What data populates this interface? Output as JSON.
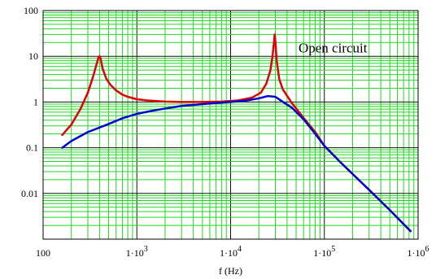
{
  "chart_data": {
    "type": "line",
    "title": "",
    "xlabel": "f (Hz)",
    "ylabel": "",
    "x_scale": "log",
    "y_scale": "log",
    "xlim": [
      100,
      1000000
    ],
    "ylim": [
      0.001,
      100
    ],
    "grid": true,
    "x_ticks": [
      {
        "value": 100,
        "label": "100",
        "exp": ""
      },
      {
        "value": 1000,
        "label": "1·10",
        "exp": "3"
      },
      {
        "value": 10000,
        "label": "1·10",
        "exp": "4"
      },
      {
        "value": 100000,
        "label": "1·10",
        "exp": "5"
      },
      {
        "value": 1000000,
        "label": "1·10",
        "exp": "6"
      }
    ],
    "y_ticks": [
      {
        "value": 100,
        "label": "100"
      },
      {
        "value": 10,
        "label": "10"
      },
      {
        "value": 1,
        "label": "1"
      },
      {
        "value": 0.1,
        "label": "0.1"
      },
      {
        "value": 0.01,
        "label": "0.01"
      }
    ],
    "annotations": [
      {
        "text": "Open circuit",
        "x": 53000,
        "y": 20
      }
    ],
    "series": [
      {
        "color": "#e00000",
        "points": [
          [
            160,
            0.19
          ],
          [
            200,
            0.32
          ],
          [
            250,
            0.7
          ],
          [
            300,
            1.6
          ],
          [
            340,
            3.5
          ],
          [
            370,
            6.5
          ],
          [
            390,
            9.5
          ],
          [
            400,
            10
          ],
          [
            410,
            9
          ],
          [
            430,
            5.5
          ],
          [
            470,
            3.3
          ],
          [
            520,
            2.4
          ],
          [
            600,
            1.8
          ],
          [
            700,
            1.45
          ],
          [
            800,
            1.3
          ],
          [
            1000,
            1.15
          ],
          [
            1300,
            1.08
          ],
          [
            2000,
            1.02
          ],
          [
            3000,
            1.0
          ],
          [
            5000,
            1.0
          ],
          [
            8000,
            1.02
          ],
          [
            12000,
            1.08
          ],
          [
            17000,
            1.25
          ],
          [
            21000,
            1.6
          ],
          [
            24000,
            2.5
          ],
          [
            26500,
            4.8
          ],
          [
            28000,
            10
          ],
          [
            29000,
            20
          ],
          [
            29500,
            30
          ],
          [
            30000,
            22
          ],
          [
            31000,
            8
          ],
          [
            33000,
            3.2
          ],
          [
            36000,
            1.9
          ],
          [
            45000,
            0.95
          ],
          [
            60000,
            0.45
          ],
          [
            80000,
            0.22
          ],
          [
            100000,
            0.11
          ],
          [
            150000,
            0.047
          ],
          [
            300000,
            0.012
          ],
          [
            500000,
            0.0043
          ],
          [
            830000,
            0.0015
          ]
        ]
      },
      {
        "color": "#0000d0",
        "points": [
          [
            160,
            0.1
          ],
          [
            200,
            0.14
          ],
          [
            300,
            0.22
          ],
          [
            500,
            0.33
          ],
          [
            700,
            0.44
          ],
          [
            1000,
            0.55
          ],
          [
            1500,
            0.65
          ],
          [
            2000,
            0.72
          ],
          [
            3000,
            0.82
          ],
          [
            5000,
            0.9
          ],
          [
            7000,
            0.95
          ],
          [
            10000,
            1.0
          ],
          [
            15000,
            1.08
          ],
          [
            20000,
            1.2
          ],
          [
            25000,
            1.35
          ],
          [
            30000,
            1.3
          ],
          [
            35000,
            1.05
          ],
          [
            45000,
            0.75
          ],
          [
            60000,
            0.42
          ],
          [
            80000,
            0.2
          ],
          [
            100000,
            0.11
          ],
          [
            150000,
            0.047
          ],
          [
            300000,
            0.012
          ],
          [
            500000,
            0.0043
          ],
          [
            830000,
            0.0015
          ]
        ]
      }
    ]
  }
}
